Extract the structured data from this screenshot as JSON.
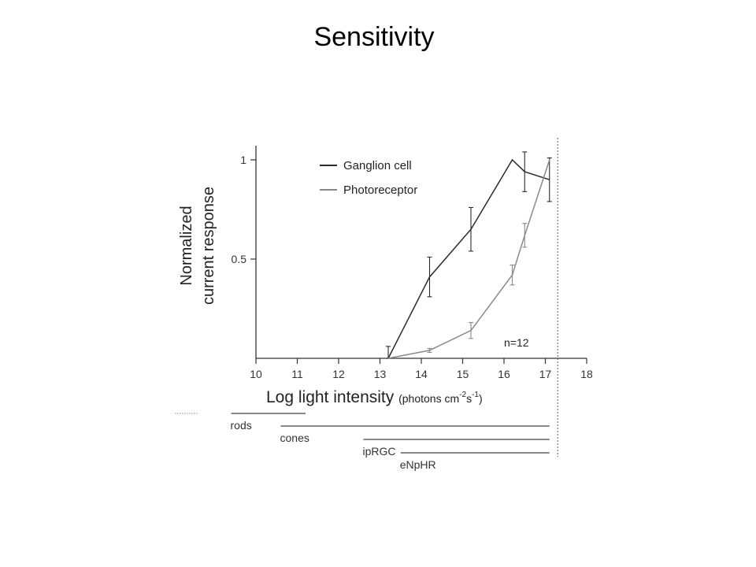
{
  "slide": {
    "title": "Sensitivity"
  },
  "chart_data": {
    "type": "line",
    "title": "",
    "ylabel_lines": [
      "Normalized",
      "current response"
    ],
    "xlabel": "Log light intensity",
    "xlabel_unit": {
      "prefix": "(photons cm",
      "sup1": "-2",
      "mid": "s",
      "sup2": "-1",
      "suffix": ")"
    },
    "xlim": [
      10,
      18
    ],
    "ylim": [
      0,
      1.05
    ],
    "x_ticks": [
      10,
      11,
      12,
      13,
      14,
      15,
      16,
      17,
      18
    ],
    "y_ticks": [
      {
        "value": 0.5,
        "label": "0.5"
      },
      {
        "value": 1,
        "label": "1"
      }
    ],
    "annotation": "n=12",
    "legend_position": "top-left",
    "series": [
      {
        "name": "Ganglion cell",
        "color": "#2a2a2a",
        "x": [
          13.2,
          14.2,
          15.2,
          16.2,
          16.5,
          17.1
        ],
        "y": [
          0.0,
          0.41,
          0.65,
          1.0,
          0.94,
          0.9
        ],
        "err": [
          0.06,
          0.1,
          0.11,
          0,
          0.1,
          0.11
        ]
      },
      {
        "name": "Photoreceptor",
        "color": "#888888",
        "x": [
          13.2,
          14.2,
          15.2,
          16.2,
          16.5,
          17.1
        ],
        "y": [
          0.0,
          0.04,
          0.14,
          0.42,
          0.62,
          1.0
        ],
        "err": [
          0.0,
          0.01,
          0.04,
          0.05,
          0.06,
          0
        ]
      }
    ],
    "threshold_line_x": 17.3,
    "ranges": [
      {
        "label": "rods",
        "start": 9.4,
        "end": 11.2
      },
      {
        "label": "cones",
        "start": 10.6,
        "end": 17.1
      },
      {
        "label": "ipRGC",
        "start": 12.6,
        "end": 17.1
      },
      {
        "label": "eNpHR",
        "start": 13.5,
        "end": 17.1
      }
    ]
  }
}
